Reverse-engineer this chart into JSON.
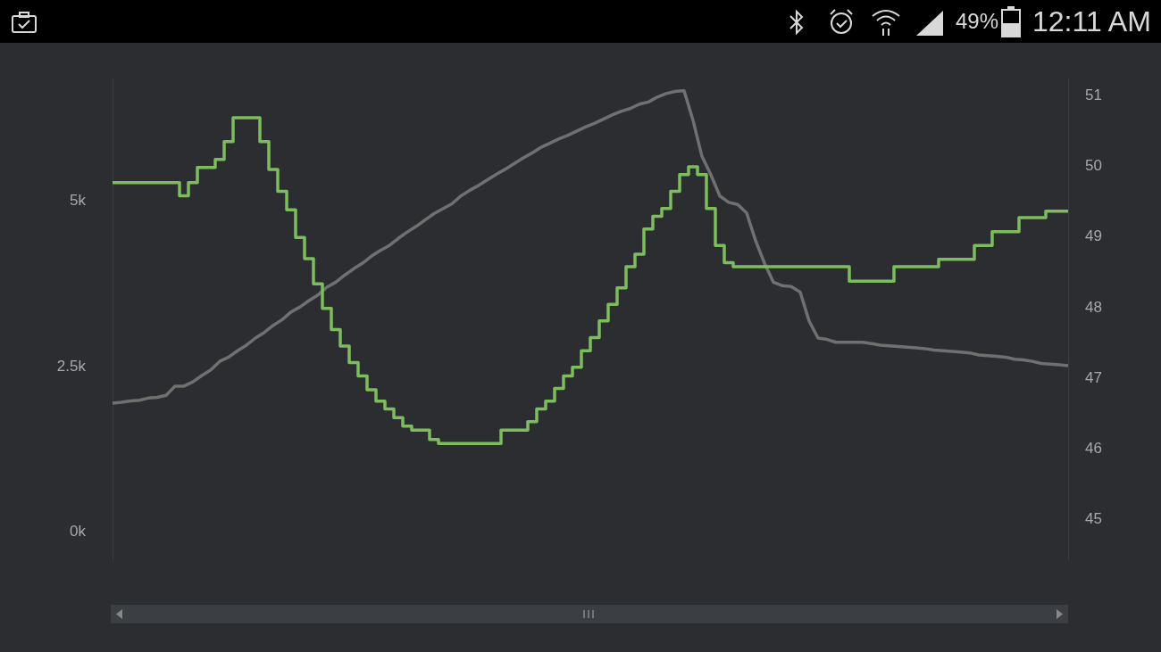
{
  "chart_data": {
    "type": "line",
    "categories": [
      null,
      null,
      null,
      null,
      null,
      null,
      null,
      null,
      null,
      null,
      null,
      null,
      null,
      null,
      null,
      null,
      null,
      null,
      null,
      null,
      null,
      null,
      null,
      null,
      null,
      null,
      null,
      null,
      null,
      null,
      null,
      null,
      null,
      null,
      null,
      null,
      null,
      null,
      null,
      null,
      null,
      null,
      null,
      null,
      null,
      null,
      null,
      null,
      null,
      null,
      null,
      null,
      null,
      null,
      null,
      null,
      null,
      null,
      null,
      null,
      null,
      null,
      null,
      null,
      null,
      null,
      null,
      null,
      null,
      null,
      null,
      null,
      null,
      null,
      null,
      null,
      null,
      null,
      null,
      null,
      null,
      null,
      null,
      null,
      null,
      null,
      null,
      null,
      null,
      null,
      null,
      null,
      null,
      null,
      null,
      null,
      null,
      null,
      null,
      null,
      null,
      null,
      null,
      null,
      null,
      null,
      null,
      null
    ],
    "series": [
      {
        "type": "step",
        "color": "#7dbd5e",
        "values": [
          5280,
          5280,
          5280,
          5280,
          5280,
          5280,
          5280,
          5280,
          5080,
          5280,
          5510,
          5510,
          5630,
          5900,
          6260,
          6260,
          6260,
          5900,
          5480,
          5150,
          4870,
          4450,
          4130,
          3750,
          3380,
          3060,
          2810,
          2560,
          2360,
          2150,
          1980,
          1860,
          1730,
          1600,
          1540,
          1540,
          1400,
          1340,
          1340,
          1340,
          1340,
          1340,
          1340,
          1340,
          1540,
          1540,
          1540,
          1670,
          1860,
          1980,
          2170,
          2360,
          2490,
          2740,
          2940,
          3190,
          3440,
          3690,
          4010,
          4200,
          4580,
          4770,
          4890,
          5150,
          5400,
          5520,
          5400,
          4890,
          4330,
          4070,
          4010,
          4010,
          4010,
          4010,
          4010,
          4010,
          4010,
          4010,
          4010,
          4010,
          4010,
          4010,
          4010,
          3790,
          3790,
          3790,
          3790,
          3790,
          4010,
          4010,
          4010,
          4010,
          4010,
          4120,
          4120,
          4120,
          4120,
          4330,
          4330,
          4540,
          4540,
          4540,
          4750,
          4750,
          4750,
          4850,
          4850,
          4850
        ]
      },
      {
        "type": "line",
        "axis": "y2",
        "color": "#707070",
        "values": [
          46.65,
          46.66,
          46.68,
          46.69,
          46.72,
          46.73,
          46.76,
          46.89,
          46.89,
          46.95,
          47.04,
          47.12,
          47.24,
          47.3,
          47.39,
          47.47,
          47.57,
          47.65,
          47.75,
          47.83,
          47.94,
          48.01,
          48.1,
          48.18,
          48.29,
          48.36,
          48.46,
          48.55,
          48.63,
          48.73,
          48.81,
          48.88,
          48.98,
          49.07,
          49.15,
          49.24,
          49.33,
          49.4,
          49.47,
          49.58,
          49.66,
          49.73,
          49.81,
          49.89,
          49.96,
          50.04,
          50.12,
          50.19,
          50.27,
          50.33,
          50.39,
          50.44,
          50.5,
          50.56,
          50.61,
          50.67,
          50.73,
          50.78,
          50.82,
          50.88,
          50.91,
          50.98,
          51.03,
          51.06,
          51.07,
          50.65,
          50.14,
          49.88,
          49.58,
          49.49,
          49.46,
          49.34,
          48.95,
          48.63,
          48.36,
          48.31,
          48.3,
          48.22,
          47.81,
          47.57,
          47.55,
          47.51,
          47.51,
          47.51,
          47.51,
          47.49,
          47.47,
          47.46,
          47.45,
          47.44,
          47.43,
          47.42,
          47.4,
          47.39,
          47.38,
          47.37,
          47.36,
          47.33,
          47.32,
          47.31,
          47.3,
          47.27,
          47.26,
          47.24,
          47.21,
          47.2,
          47.19,
          47.18
        ]
      }
    ],
    "ylim": [
      -420,
      6850
    ],
    "yticks": [
      {
        "value": 0,
        "label": "0k"
      },
      {
        "value": 2500,
        "label": "2.5k"
      },
      {
        "value": 5000,
        "label": "5k"
      }
    ],
    "y2lim": [
      44.43,
      51.24
    ],
    "y2ticks": [
      45,
      46,
      47,
      48,
      49,
      50,
      51
    ],
    "grid": false,
    "legend": false,
    "marker": "none",
    "annotations": [
      "49%",
      "12:11 AM"
    ]
  }
}
